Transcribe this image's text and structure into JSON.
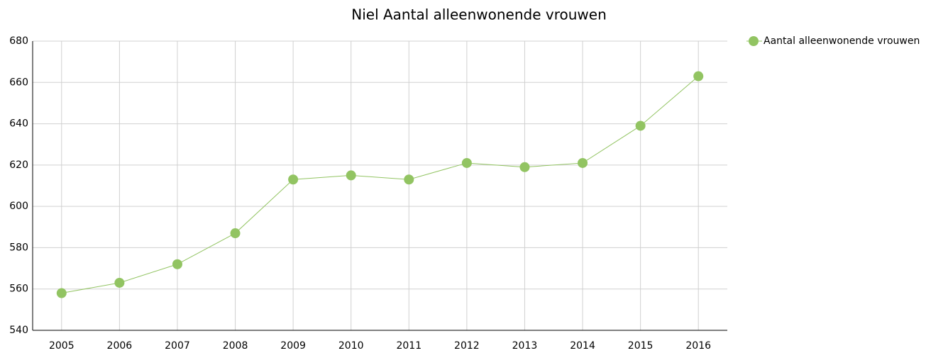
{
  "chart_data": {
    "type": "line",
    "title": "Niel  Aantal alleenwonende vrouwen",
    "categories": [
      "2005",
      "2006",
      "2007",
      "2008",
      "2009",
      "2010",
      "2011",
      "2012",
      "2013",
      "2014",
      "2015",
      "2016"
    ],
    "series": [
      {
        "name": "Aantal alleenwonende vrouwen",
        "color": "#92c462",
        "values": [
          558,
          563,
          572,
          587,
          613,
          615,
          613,
          621,
          619,
          621,
          639,
          663
        ]
      }
    ],
    "ylim": [
      540,
      680
    ],
    "yticks": [
      540,
      560,
      580,
      600,
      620,
      640,
      660,
      680
    ],
    "grid": true,
    "legend": "top-right"
  }
}
